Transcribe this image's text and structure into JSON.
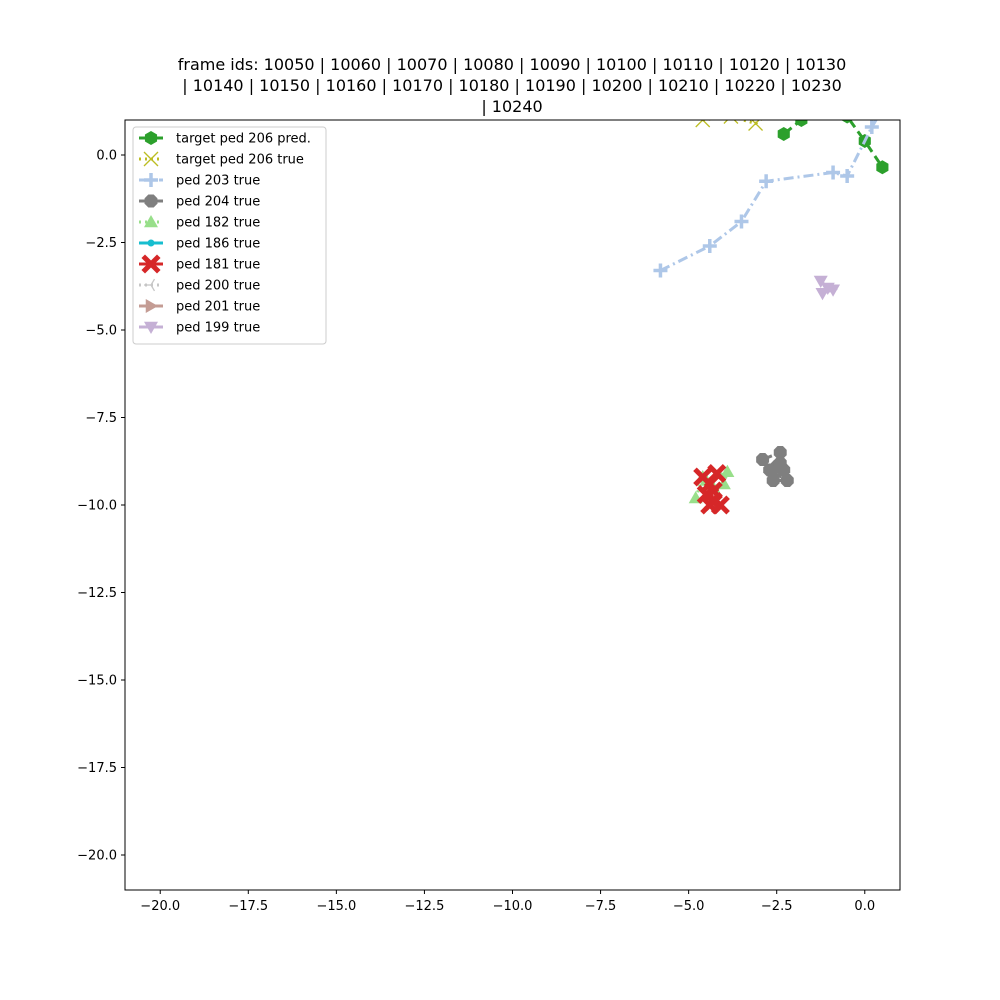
{
  "chart_data": {
    "type": "scatter",
    "title_lines": [
      "frame ids: 10050 | 10060 | 10070 | 10080 | 10090 | 10100 | 10110 | 10120 | 10130",
      "| 10140 | 10150 | 10160 | 10170 | 10180 | 10190 | 10200 | 10210 | 10220 | 10230",
      "| 10240"
    ],
    "xlabel": "",
    "ylabel": "",
    "xlim": [
      -21,
      1
    ],
    "ylim": [
      -21,
      1
    ],
    "x_ticks": [
      -20,
      -17.5,
      -15,
      -12.5,
      -10,
      -7.5,
      -5,
      -2.5,
      0
    ],
    "x_tick_labels": [
      "−20.0",
      "−17.5",
      "−15.0",
      "−12.5",
      "−10.0",
      "−7.5",
      "−5.0",
      "−2.5",
      "0.0"
    ],
    "y_ticks": [
      0,
      -2.5,
      -5,
      -7.5,
      -10,
      -12.5,
      -15,
      -17.5,
      -20
    ],
    "y_tick_labels": [
      "0.0",
      "−2.5",
      "−5.0",
      "−7.5",
      "−10.0",
      "−12.5",
      "−15.0",
      "−17.5",
      "−20.0"
    ],
    "grid": false,
    "legend_position": "top-left",
    "series": [
      {
        "name": "target ped 206 pred.",
        "color": "#2ca02c",
        "marker": "hexagon",
        "line": "dashed",
        "x": [
          -2.3,
          -1.8,
          -1.2,
          -0.5,
          0.0,
          0.5
        ],
        "y": [
          0.6,
          1.0,
          1.3,
          1.1,
          0.4,
          -0.35
        ]
      },
      {
        "name": "target ped 206 true",
        "color": "#bcbd22",
        "marker": "x",
        "line": "dotted",
        "x": [
          -4.6,
          -3.8,
          -3.1,
          -2.6
        ],
        "y": [
          1.0,
          1.1,
          0.9,
          1.3
        ]
      },
      {
        "name": "ped 203 true",
        "color": "#aec7e8",
        "marker": "plus",
        "line": "dashdot",
        "x": [
          -5.8,
          -4.4,
          -3.5,
          -2.8,
          -0.9,
          -0.5,
          0.2,
          0.5
        ],
        "y": [
          -3.3,
          -2.6,
          -1.9,
          -0.75,
          -0.5,
          -0.6,
          0.8,
          1.3
        ]
      },
      {
        "name": "ped 204 true",
        "color": "#7f7f7f",
        "marker": "octagon",
        "line": "dashed",
        "x": [
          -2.9,
          -2.4,
          -2.5,
          -2.7,
          -2.2,
          -2.6,
          -2.3,
          -2.4
        ],
        "y": [
          -8.7,
          -8.5,
          -8.9,
          -9.0,
          -9.3,
          -9.3,
          -9.0,
          -8.8
        ]
      },
      {
        "name": "ped 182 true",
        "color": "#98df8a",
        "marker": "triangle-up",
        "line": "dotted",
        "x": [
          -4.8,
          -4.6,
          -4.3,
          -4.0,
          -3.9,
          -4.5
        ],
        "y": [
          -9.8,
          -9.2,
          -9.5,
          -9.4,
          -9.05,
          -9.3
        ]
      },
      {
        "name": "ped 186 true",
        "color": "#17becf",
        "marker": "point",
        "line": "solid",
        "x": [],
        "y": []
      },
      {
        "name": "ped 181 true",
        "color": "#d62728",
        "marker": "x-filled",
        "line": "dashed",
        "x": [
          -4.6,
          -4.4,
          -4.2,
          -4.5,
          -4.3,
          -4.1,
          -4.4,
          -4.3
        ],
        "y": [
          -9.2,
          -9.4,
          -9.1,
          -9.7,
          -9.9,
          -10.0,
          -10.0,
          -9.6
        ]
      },
      {
        "name": "ped 200 true",
        "color": "#c7c7c7",
        "marker": "tri-left",
        "line": "dotted",
        "x": [],
        "y": []
      },
      {
        "name": "ped 201 true",
        "color": "#c49c94",
        "marker": "triangle-right",
        "line": "solid",
        "x": [],
        "y": []
      },
      {
        "name": "ped 199 true",
        "color": "#c5b0d5",
        "marker": "triangle-down",
        "line": "dashed",
        "x": [
          -1.25,
          -1.05,
          -0.9,
          -1.2
        ],
        "y": [
          -3.6,
          -3.8,
          -3.85,
          -3.95
        ]
      }
    ]
  }
}
